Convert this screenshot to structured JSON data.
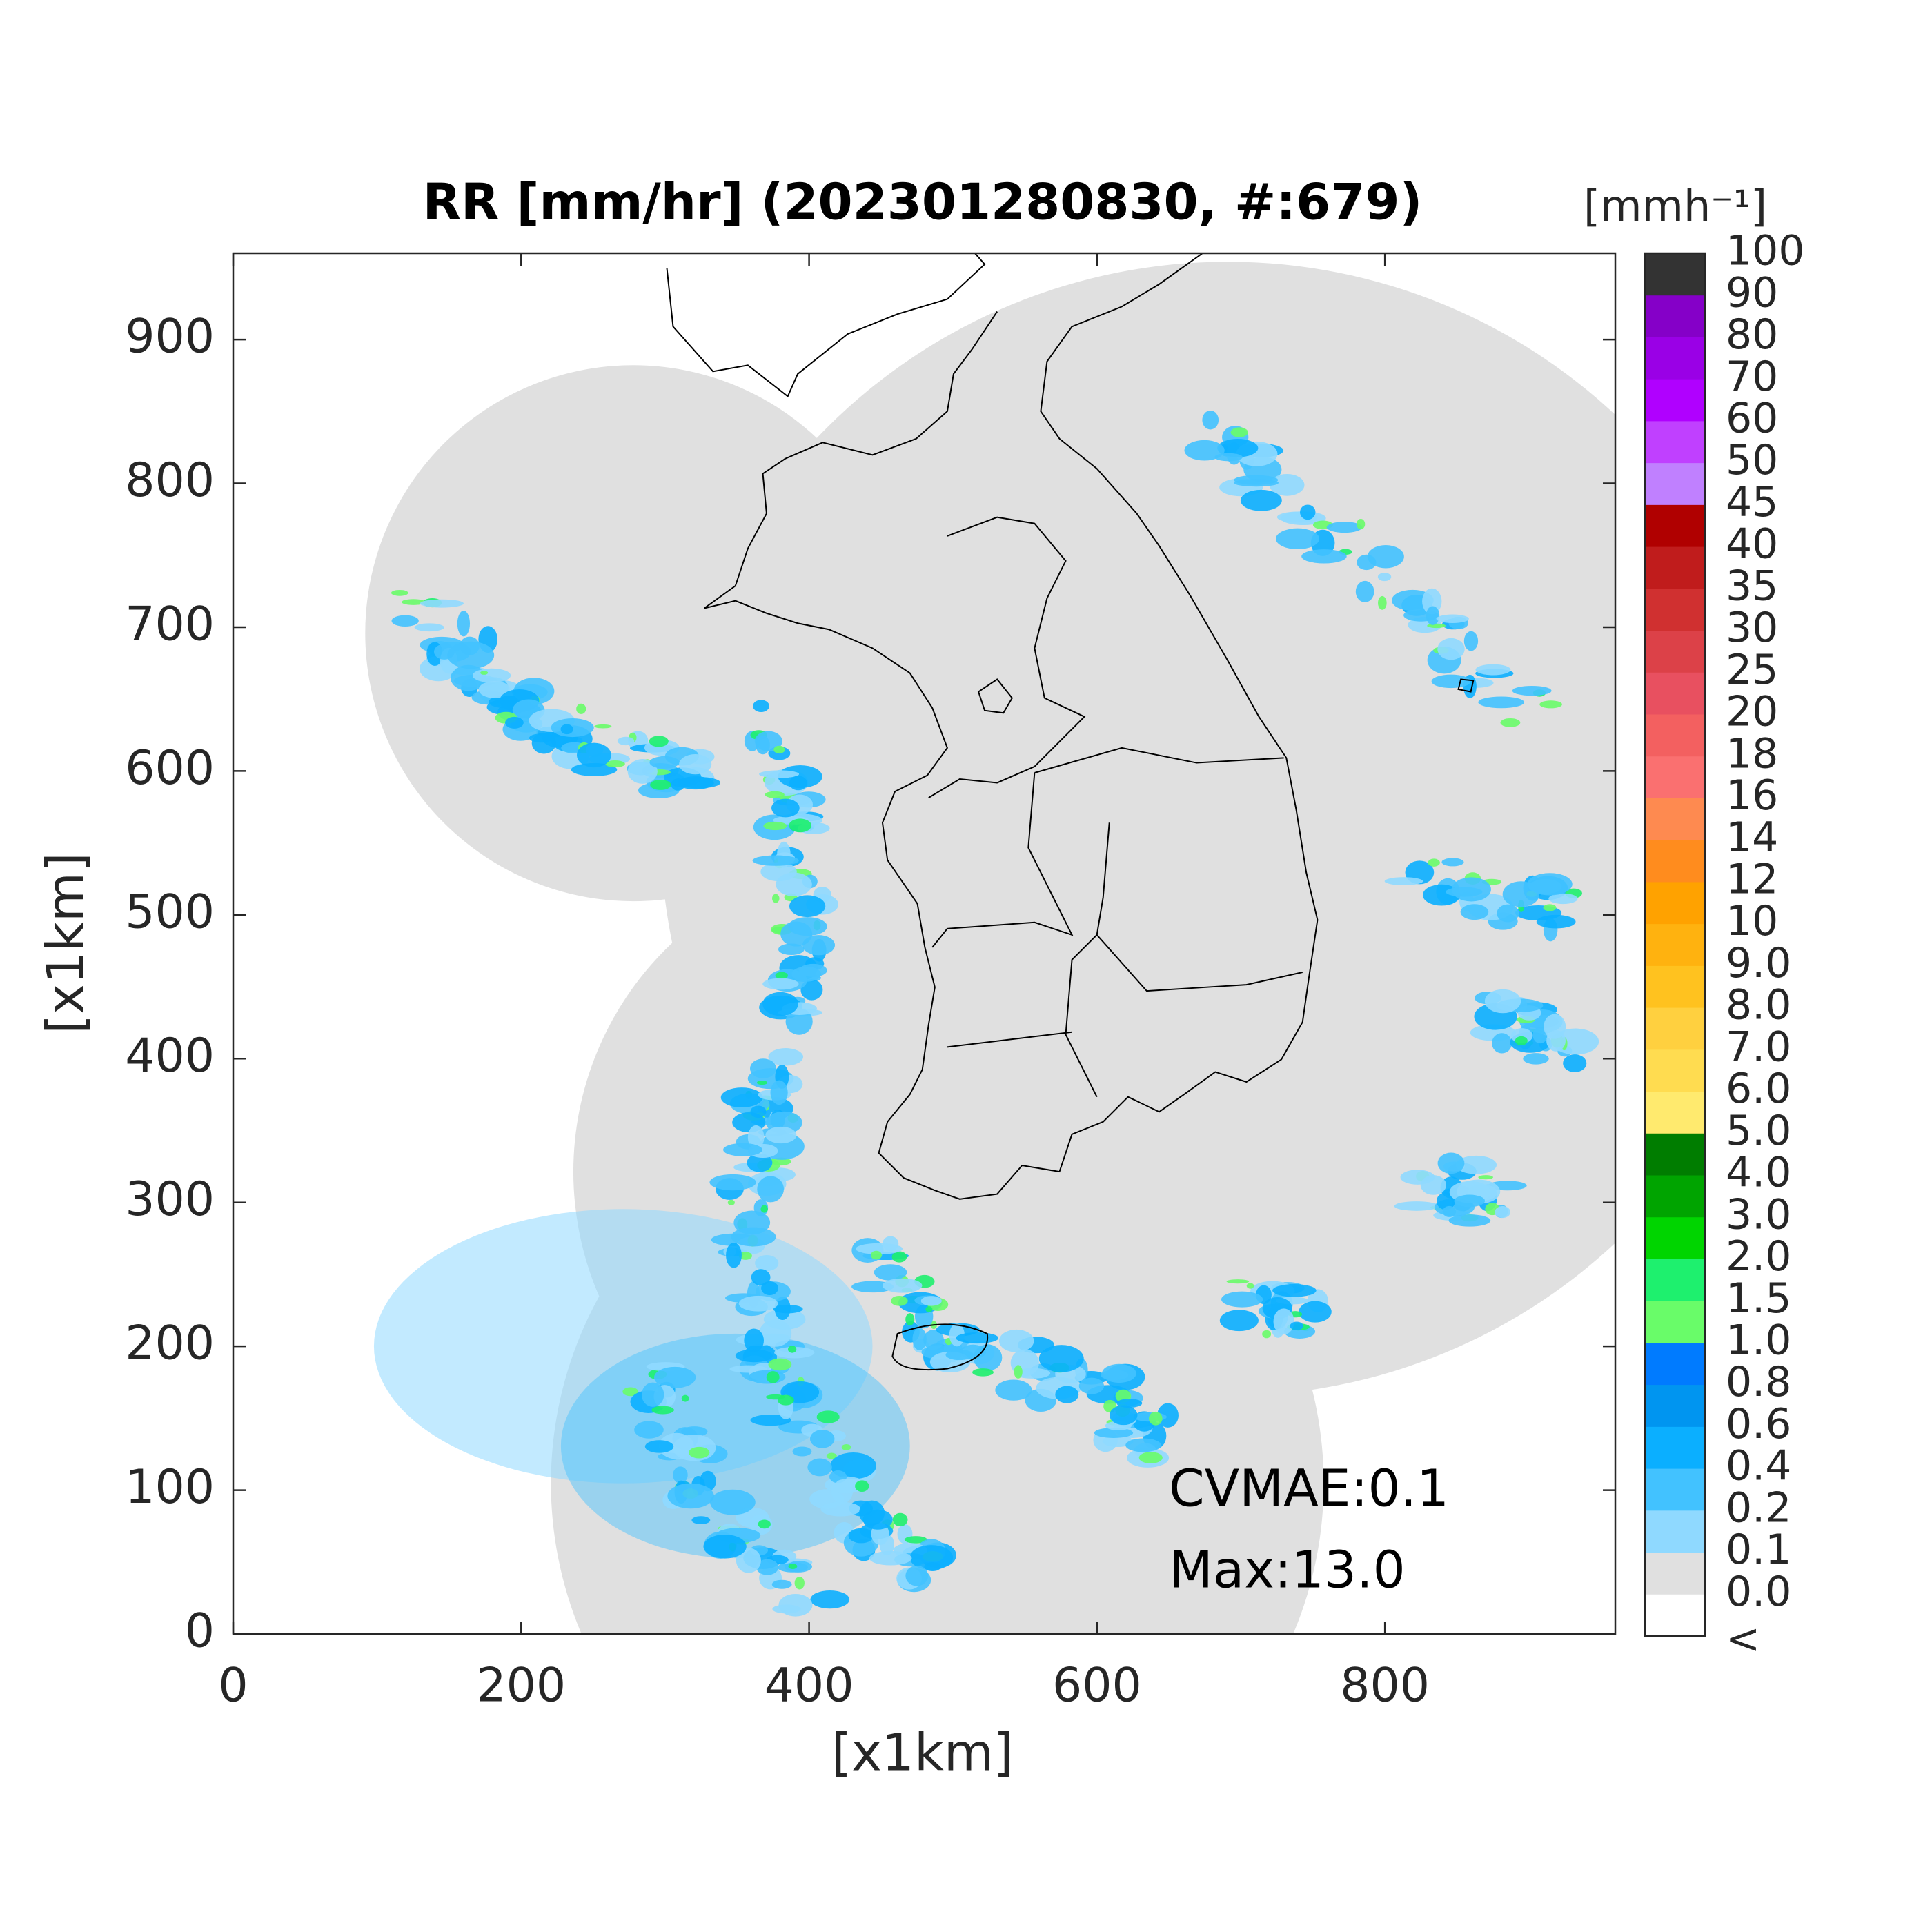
{
  "chart_data": {
    "type": "radar-map",
    "title": "RR [mm/hr] (202301280830, #:679)",
    "xlabel": "[x1km]",
    "ylabel": "[x1km]",
    "xlim": [
      0,
      960
    ],
    "ylim": [
      0,
      960
    ],
    "xticks": [
      0,
      200,
      400,
      600,
      800
    ],
    "yticks": [
      0,
      100,
      200,
      300,
      400,
      500,
      600,
      700,
      800,
      900
    ],
    "annotations": [
      "CVMAE:0.1",
      "Max:13.0"
    ],
    "colorbar": {
      "label": "[mmh⁻¹]",
      "under_label": "<",
      "ticks": [
        {
          "value": 0,
          "label": "0.0"
        },
        0.1,
        0.2,
        0.4,
        0.6,
        0.8,
        {
          "value": 1,
          "label": "1.0"
        },
        1.5,
        {
          "value": 2,
          "label": "2.0"
        },
        {
          "value": 3,
          "label": "3.0"
        },
        {
          "value": 4,
          "label": "4.0"
        },
        {
          "value": 5,
          "label": "5.0"
        },
        {
          "value": 6,
          "label": "6.0"
        },
        {
          "value": 7,
          "label": "7.0"
        },
        {
          "value": 8,
          "label": "8.0"
        },
        {
          "value": 9,
          "label": "9.0"
        },
        10,
        12,
        14,
        16,
        18,
        20,
        25,
        30,
        35,
        40,
        45,
        50,
        60,
        70,
        80,
        90,
        100
      ],
      "colors": [
        "#ffffff",
        "#e0e0e0",
        "#8fd9ff",
        "#42c2ff",
        "#0bafff",
        "#0095f0",
        "#007bff",
        "#69fc69",
        "#1ef06e",
        "#00d500",
        "#00a400",
        "#007d00",
        "#ffea6e",
        "#ffdc50",
        "#ffd03f",
        "#ffc21f",
        "#ffb20f",
        "#ffa200",
        "#ff8c1e",
        "#fe8a50",
        "#fa7070",
        "#f36060",
        "#e85060",
        "#dc4148",
        "#d03030",
        "#c01c1c",
        "#b00000",
        "#c080ff",
        "#c040ff",
        "#b000ff",
        "#9a00e6",
        "#8500c8",
        "#333333"
      ]
    }
  }
}
